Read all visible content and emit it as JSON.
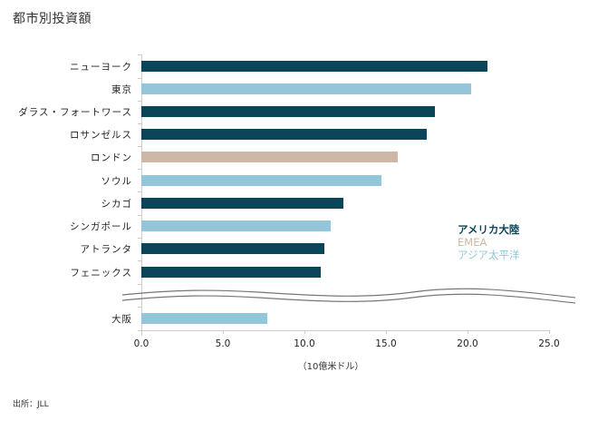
{
  "title": "都市別投資額",
  "source": "出所：JLL",
  "colors": {
    "americas": "#0c4459",
    "emea": "#cdb7a6",
    "asia_pacific": "#93c6d8"
  },
  "legend": [
    {
      "label": "アメリカ大陸",
      "color": "#0c4459"
    },
    {
      "label": "EMEA",
      "color": "#cdb7a6"
    },
    {
      "label": "アジア太平洋",
      "color": "#93c6d8"
    }
  ],
  "axis": {
    "x_title": "（10億米ドル）",
    "ticks": [
      "0.0",
      "5.0",
      "10.0",
      "15.0",
      "20.0",
      "25.0"
    ]
  },
  "chart_data": {
    "type": "bar",
    "orientation": "horizontal",
    "title": "都市別投資額",
    "xlabel": "（10億米ドル）",
    "ylabel": "",
    "xlim": [
      0,
      25
    ],
    "x_ticks": [
      0,
      5,
      10,
      15,
      20,
      25
    ],
    "axis_break": "between フェニックス and 大阪",
    "legend_position": "right",
    "grid": false,
    "categories": [
      "ニューヨーク",
      "東京",
      "ダラス・フォートワース",
      "ロサンゼルス",
      "ロンドン",
      "ソウル",
      "シカゴ",
      "シンガポール",
      "アトランタ",
      "フェニックス",
      "大阪"
    ],
    "values": [
      21.2,
      20.2,
      18.0,
      17.5,
      15.7,
      14.7,
      12.4,
      11.6,
      11.2,
      11.0,
      7.7
    ],
    "regions": [
      "アメリカ大陸",
      "アジア太平洋",
      "アメリカ大陸",
      "アメリカ大陸",
      "EMEA",
      "アジア太平洋",
      "アメリカ大陸",
      "アジア太平洋",
      "アメリカ大陸",
      "アメリカ大陸",
      "アジア太平洋"
    ],
    "legend": [
      "アメリカ大陸",
      "EMEA",
      "アジア太平洋"
    ],
    "source": "JLL"
  },
  "rows": [
    {
      "label": "ニューヨーク",
      "value": 21.2,
      "region": "americas"
    },
    {
      "label": "東京",
      "value": 20.2,
      "region": "asia_pacific"
    },
    {
      "label": "ダラス・フォートワース",
      "value": 18.0,
      "region": "americas"
    },
    {
      "label": "ロサンゼルス",
      "value": 17.5,
      "region": "americas"
    },
    {
      "label": "ロンドン",
      "value": 15.7,
      "region": "emea"
    },
    {
      "label": "ソウル",
      "value": 14.7,
      "region": "asia_pacific"
    },
    {
      "label": "シカゴ",
      "value": 12.4,
      "region": "americas"
    },
    {
      "label": "シンガポール",
      "value": 11.6,
      "region": "asia_pacific"
    },
    {
      "label": "アトランタ",
      "value": 11.2,
      "region": "americas"
    },
    {
      "label": "フェニックス",
      "value": 11.0,
      "region": "americas"
    },
    {
      "label": "大阪",
      "value": 7.7,
      "region": "asia_pacific"
    }
  ]
}
